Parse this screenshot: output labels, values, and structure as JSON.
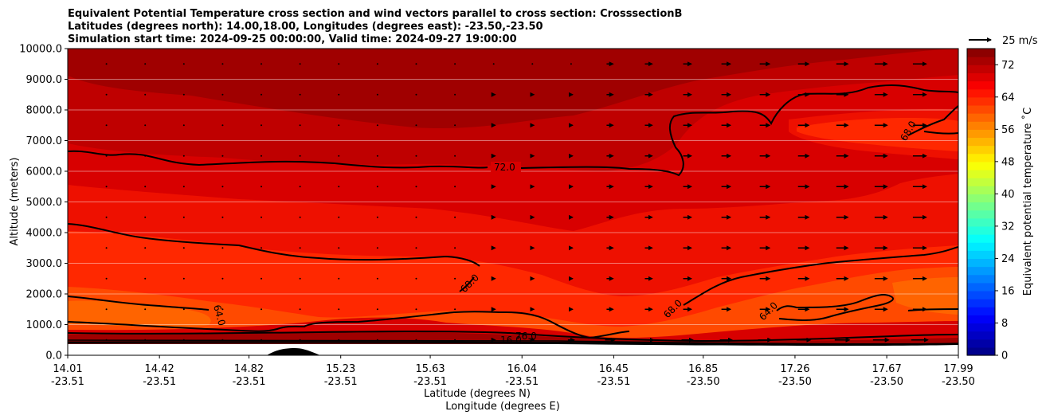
{
  "title_lines": [
    "Equivalent Potential Temperature cross section and wind vectors parallel to cross section: CrosssectionB",
    "Latitudes (degrees north): 14.00,18.00, Longitudes (degrees east): -23.50,-23.50",
    "Simulation start time: 2024-09-25 00:00:00, Valid time: 2024-09-27 19:00:00"
  ],
  "chart_data": {
    "type": "contourf",
    "title": "Equivalent Potential Temperature cross section and wind vectors parallel to cross section: CrosssectionB",
    "ylabel": "Altitude (meters)",
    "xlabel_lines": [
      "Latitude (degrees N)",
      "Longitude (degrees E)"
    ],
    "ylim": [
      0,
      10000
    ],
    "yticks": [
      "0.0",
      "1000.0",
      "2000.0",
      "3000.0",
      "4000.0",
      "5000.0",
      "6000.0",
      "7000.0",
      "8000.0",
      "9000.0",
      "10000.0"
    ],
    "yticks_values": [
      0,
      1000,
      2000,
      3000,
      4000,
      5000,
      6000,
      7000,
      8000,
      9000,
      10000
    ],
    "x_latitudes": [
      "14.01",
      "14.42",
      "14.82",
      "15.23",
      "15.63",
      "16.04",
      "16.45",
      "16.85",
      "17.26",
      "17.67",
      "17.99"
    ],
    "x_longitudes": [
      "-23.51",
      "-23.51",
      "-23.51",
      "-23.51",
      "-23.51",
      "-23.51",
      "-23.51",
      "-23.50",
      "-23.50",
      "-23.50",
      "-23.50"
    ],
    "x_lat_values": [
      14.01,
      14.42,
      14.82,
      15.23,
      15.63,
      16.04,
      16.45,
      16.85,
      17.26,
      17.67,
      17.99
    ],
    "xlim": [
      14.01,
      17.99
    ],
    "colorbar": {
      "label": "Equivalent potential temperature ˚C",
      "ticks": [
        "0",
        "8",
        "16",
        "24",
        "32",
        "40",
        "48",
        "56",
        "64",
        "72"
      ],
      "tick_values": [
        0,
        8,
        16,
        24,
        32,
        40,
        48,
        56,
        64,
        72
      ],
      "range": [
        0,
        76
      ]
    },
    "contour_labels": [
      "72.0",
      "68.0",
      "64.0",
      "68.0",
      "64.0",
      "68.0",
      "76.0",
      "16.0"
    ],
    "quiver_key": "25 m/s",
    "terrain_peak": {
      "lat": 15.0,
      "altitude": 200
    },
    "bands": [
      {
        "value": 74,
        "color": "#a00000"
      },
      {
        "value": 72,
        "color": "#bf0000"
      },
      {
        "value": 70,
        "color": "#d80000"
      },
      {
        "value": 68,
        "color": "#ee1000"
      },
      {
        "value": 66,
        "color": "#ff2800"
      },
      {
        "value": 64,
        "color": "#ff4a00"
      },
      {
        "value": 62,
        "color": "#ff6400"
      }
    ]
  }
}
